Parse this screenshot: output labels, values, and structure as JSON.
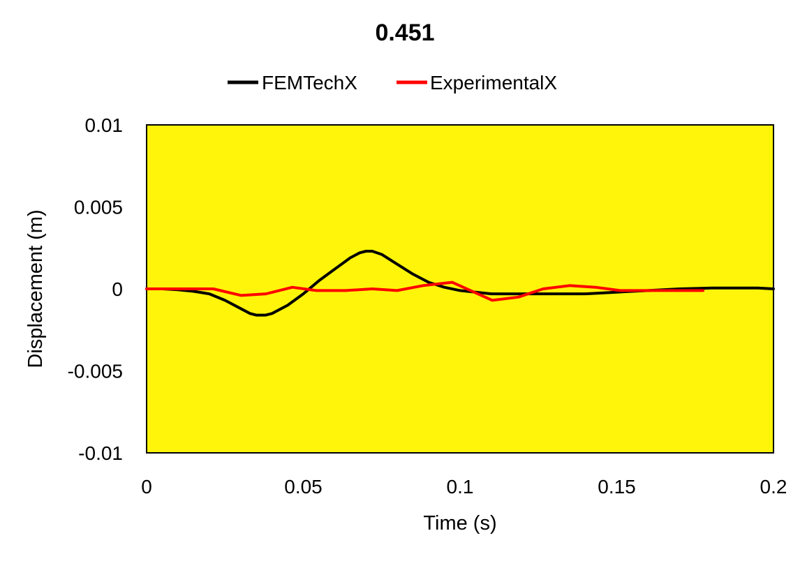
{
  "chart_data": {
    "type": "line",
    "title": "0.451",
    "xlabel": "Time (s)",
    "ylabel": "Displacement (m)",
    "xlim": [
      0,
      0.2
    ],
    "ylim": [
      -0.01,
      0.01
    ],
    "xticks": [
      0,
      0.05,
      0.1,
      0.15,
      0.2
    ],
    "xtick_labels": [
      "0",
      "0.05",
      "0.1",
      "0.15",
      "0.2"
    ],
    "yticks": [
      0.01,
      0.005,
      0,
      -0.005,
      -0.01
    ],
    "ytick_labels": [
      "0.01",
      "0.005",
      "0",
      "-0.005",
      "-0.01"
    ],
    "grid": false,
    "plot_background": "#FFF50A",
    "legend_position": "top",
    "series": [
      {
        "name": "FEMTechX",
        "color": "#000000",
        "x": [
          0,
          0.005,
          0.01,
          0.015,
          0.02,
          0.025,
          0.03,
          0.033,
          0.035,
          0.038,
          0.04,
          0.045,
          0.05,
          0.055,
          0.06,
          0.065,
          0.068,
          0.07,
          0.072,
          0.075,
          0.08,
          0.085,
          0.09,
          0.095,
          0.1,
          0.105,
          0.11,
          0.12,
          0.13,
          0.14,
          0.15,
          0.16,
          0.17,
          0.18,
          0.19,
          0.195,
          0.2
        ],
        "y": [
          0,
          0,
          -5e-05,
          -0.00015,
          -0.0003,
          -0.0007,
          -0.0012,
          -0.0015,
          -0.0016,
          -0.0016,
          -0.0015,
          -0.001,
          -0.0003,
          0.0005,
          0.0012,
          0.0019,
          0.0022,
          0.0023,
          0.0023,
          0.0021,
          0.0015,
          0.0009,
          0.0004,
          0.0001,
          -0.0001,
          -0.0002,
          -0.0003,
          -0.0003,
          -0.0003,
          -0.0003,
          -0.0002,
          -0.0001,
          0,
          5e-05,
          5e-05,
          5e-05,
          0
        ]
      },
      {
        "name": "ExperimentalX",
        "color": "#FF0000",
        "x": [
          0,
          0.0213,
          0.0302,
          0.0381,
          0.0465,
          0.0541,
          0.0634,
          0.072,
          0.0799,
          0.0882,
          0.0975,
          0.1103,
          0.1186,
          0.1265,
          0.1349,
          0.1433,
          0.1511,
          0.1605,
          0.1687,
          0.1775
        ],
        "y": [
          0,
          0,
          -0.0004,
          -0.0003,
          0.0001,
          -0.0001,
          -0.0001,
          0,
          -0.0001,
          0.0002,
          0.0004,
          -0.0007,
          -0.0005,
          0,
          0.0002,
          0.0001,
          -0.0001,
          -0.0001,
          -0.0001,
          -0.0001
        ]
      }
    ]
  }
}
